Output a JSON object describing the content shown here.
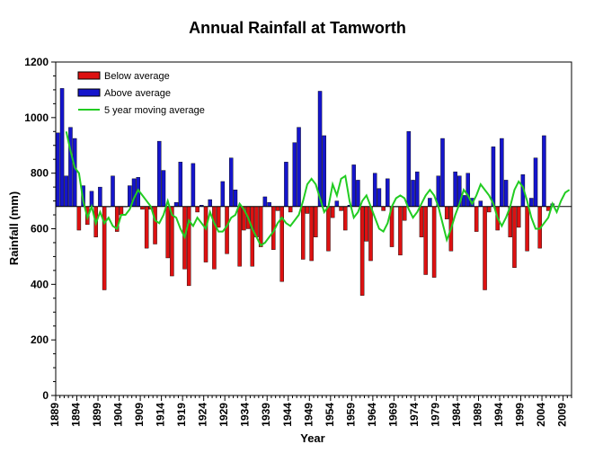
{
  "chart_data": {
    "type": "bar",
    "title": "Annual Rainfall at Tamworth",
    "xlabel": "Year",
    "ylabel": "Rainfall (mm)",
    "ylim": [
      0,
      1200
    ],
    "yticks": [
      0,
      200,
      400,
      600,
      800,
      1000,
      1200
    ],
    "y_minor_step": 50,
    "xlim": [
      1889,
      2011
    ],
    "xticks": [
      1889,
      1894,
      1899,
      1904,
      1909,
      1914,
      1919,
      1924,
      1929,
      1934,
      1939,
      1944,
      1949,
      1954,
      1959,
      1964,
      1969,
      1974,
      1979,
      1984,
      1989,
      1994,
      1999,
      2004,
      2009
    ],
    "baseline": 680,
    "grid": false,
    "legend_placement": "top-left",
    "colors": {
      "below": "#dd1111",
      "above": "#1515cc",
      "moving_average": "#22cc22"
    },
    "legend": {
      "below": "Below average",
      "above": "Above average",
      "moving_average": "5 year moving average"
    },
    "start_year": 1889,
    "annual_rainfall": [
      945,
      1105,
      790,
      965,
      925,
      595,
      755,
      615,
      735,
      570,
      750,
      380,
      680,
      790,
      590,
      650,
      680,
      755,
      780,
      785,
      670,
      530,
      670,
      545,
      915,
      810,
      495,
      430,
      695,
      840,
      455,
      395,
      835,
      660,
      685,
      480,
      705,
      455,
      605,
      770,
      510,
      855,
      740,
      465,
      595,
      600,
      465,
      570,
      535,
      715,
      695,
      525,
      665,
      410,
      840,
      660,
      910,
      965,
      490,
      655,
      485,
      570,
      1095,
      935,
      520,
      640,
      700,
      665,
      595,
      685,
      830,
      775,
      360,
      555,
      485,
      800,
      745,
      665,
      780,
      535,
      680,
      505,
      630,
      950,
      775,
      805,
      570,
      435,
      710,
      425,
      790,
      925,
      635,
      520,
      805,
      790,
      720,
      800,
      710,
      590,
      700,
      380,
      660,
      895,
      595,
      925,
      775,
      570,
      460,
      605,
      795,
      520,
      710,
      855,
      530,
      935,
      665,
      690
    ],
    "moving_average": [
      {
        "x": 1891,
        "y": 950
      },
      {
        "x": 1892,
        "y": 880
      },
      {
        "x": 1893,
        "y": 820
      },
      {
        "x": 1894,
        "y": 800
      },
      {
        "x": 1895,
        "y": 700
      },
      {
        "x": 1896,
        "y": 640
      },
      {
        "x": 1897,
        "y": 680
      },
      {
        "x": 1898,
        "y": 620
      },
      {
        "x": 1899,
        "y": 660
      },
      {
        "x": 1900,
        "y": 620
      },
      {
        "x": 1901,
        "y": 640
      },
      {
        "x": 1902,
        "y": 610
      },
      {
        "x": 1903,
        "y": 600
      },
      {
        "x": 1904,
        "y": 650
      },
      {
        "x": 1905,
        "y": 650
      },
      {
        "x": 1906,
        "y": 670
      },
      {
        "x": 1907,
        "y": 710
      },
      {
        "x": 1908,
        "y": 740
      },
      {
        "x": 1909,
        "y": 720
      },
      {
        "x": 1910,
        "y": 700
      },
      {
        "x": 1911,
        "y": 680
      },
      {
        "x": 1912,
        "y": 630
      },
      {
        "x": 1913,
        "y": 620
      },
      {
        "x": 1914,
        "y": 650
      },
      {
        "x": 1915,
        "y": 700
      },
      {
        "x": 1916,
        "y": 650
      },
      {
        "x": 1917,
        "y": 640
      },
      {
        "x": 1918,
        "y": 600
      },
      {
        "x": 1919,
        "y": 570
      },
      {
        "x": 1920,
        "y": 630
      },
      {
        "x": 1921,
        "y": 610
      },
      {
        "x": 1922,
        "y": 640
      },
      {
        "x": 1923,
        "y": 620
      },
      {
        "x": 1924,
        "y": 600
      },
      {
        "x": 1925,
        "y": 660
      },
      {
        "x": 1926,
        "y": 620
      },
      {
        "x": 1927,
        "y": 590
      },
      {
        "x": 1928,
        "y": 590
      },
      {
        "x": 1929,
        "y": 610
      },
      {
        "x": 1930,
        "y": 640
      },
      {
        "x": 1931,
        "y": 650
      },
      {
        "x": 1932,
        "y": 690
      },
      {
        "x": 1933,
        "y": 670
      },
      {
        "x": 1934,
        "y": 640
      },
      {
        "x": 1935,
        "y": 600
      },
      {
        "x": 1936,
        "y": 570
      },
      {
        "x": 1937,
        "y": 540
      },
      {
        "x": 1938,
        "y": 550
      },
      {
        "x": 1939,
        "y": 570
      },
      {
        "x": 1940,
        "y": 590
      },
      {
        "x": 1941,
        "y": 620
      },
      {
        "x": 1942,
        "y": 640
      },
      {
        "x": 1943,
        "y": 620
      },
      {
        "x": 1944,
        "y": 610
      },
      {
        "x": 1945,
        "y": 630
      },
      {
        "x": 1946,
        "y": 650
      },
      {
        "x": 1947,
        "y": 700
      },
      {
        "x": 1948,
        "y": 760
      },
      {
        "x": 1949,
        "y": 780
      },
      {
        "x": 1950,
        "y": 760
      },
      {
        "x": 1951,
        "y": 710
      },
      {
        "x": 1952,
        "y": 660
      },
      {
        "x": 1953,
        "y": 680
      },
      {
        "x": 1954,
        "y": 760
      },
      {
        "x": 1955,
        "y": 720
      },
      {
        "x": 1956,
        "y": 780
      },
      {
        "x": 1957,
        "y": 790
      },
      {
        "x": 1958,
        "y": 700
      },
      {
        "x": 1959,
        "y": 640
      },
      {
        "x": 1960,
        "y": 660
      },
      {
        "x": 1961,
        "y": 700
      },
      {
        "x": 1962,
        "y": 720
      },
      {
        "x": 1963,
        "y": 680
      },
      {
        "x": 1964,
        "y": 640
      },
      {
        "x": 1965,
        "y": 600
      },
      {
        "x": 1966,
        "y": 590
      },
      {
        "x": 1967,
        "y": 620
      },
      {
        "x": 1968,
        "y": 680
      },
      {
        "x": 1969,
        "y": 710
      },
      {
        "x": 1970,
        "y": 720
      },
      {
        "x": 1971,
        "y": 710
      },
      {
        "x": 1972,
        "y": 670
      },
      {
        "x": 1973,
        "y": 640
      },
      {
        "x": 1974,
        "y": 660
      },
      {
        "x": 1975,
        "y": 690
      },
      {
        "x": 1976,
        "y": 720
      },
      {
        "x": 1977,
        "y": 740
      },
      {
        "x": 1978,
        "y": 720
      },
      {
        "x": 1979,
        "y": 680
      },
      {
        "x": 1980,
        "y": 620
      },
      {
        "x": 1981,
        "y": 560
      },
      {
        "x": 1982,
        "y": 600
      },
      {
        "x": 1983,
        "y": 650
      },
      {
        "x": 1984,
        "y": 690
      },
      {
        "x": 1985,
        "y": 740
      },
      {
        "x": 1986,
        "y": 720
      },
      {
        "x": 1987,
        "y": 690
      },
      {
        "x": 1988,
        "y": 720
      },
      {
        "x": 1989,
        "y": 760
      },
      {
        "x": 1990,
        "y": 740
      },
      {
        "x": 1991,
        "y": 720
      },
      {
        "x": 1992,
        "y": 690
      },
      {
        "x": 1993,
        "y": 640
      },
      {
        "x": 1994,
        "y": 610
      },
      {
        "x": 1995,
        "y": 640
      },
      {
        "x": 1996,
        "y": 680
      },
      {
        "x": 1997,
        "y": 740
      },
      {
        "x": 1998,
        "y": 770
      },
      {
        "x": 1999,
        "y": 750
      },
      {
        "x": 2000,
        "y": 700
      },
      {
        "x": 2001,
        "y": 640
      },
      {
        "x": 2002,
        "y": 600
      },
      {
        "x": 2003,
        "y": 600
      },
      {
        "x": 2004,
        "y": 620
      },
      {
        "x": 2005,
        "y": 640
      },
      {
        "x": 2006,
        "y": 690
      },
      {
        "x": 2007,
        "y": 660
      },
      {
        "x": 2008,
        "y": 700
      },
      {
        "x": 2009,
        "y": 730
      },
      {
        "x": 2010,
        "y": 740
      }
    ]
  }
}
